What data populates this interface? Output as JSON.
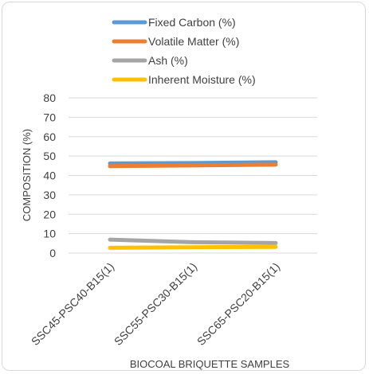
{
  "chart_data": {
    "type": "line",
    "title": "",
    "xlabel": "BIOCOAL BRIQUETTE SAMPLES",
    "ylabel": "COMPOSITION (%)",
    "ylim": [
      0,
      80
    ],
    "yticks": [
      0,
      10,
      20,
      30,
      40,
      50,
      60,
      70,
      80
    ],
    "grid": true,
    "legend_position": "top",
    "categories": [
      "SSC45-PSC40-B15(1)",
      "SSC55-PSC30-B15(1)",
      "SSC65-PSC20-B15(1)"
    ],
    "series": [
      {
        "name": "Fixed Carbon (%)",
        "values": [
          46.2,
          46.4,
          46.8
        ],
        "color": "#5b9bd5"
      },
      {
        "name": "Volatile Matter (%)",
        "values": [
          44.8,
          45.2,
          45.6
        ],
        "color": "#ed7d31"
      },
      {
        "name": "Ash (%)",
        "values": [
          6.9,
          5.6,
          5.2
        ],
        "color": "#a5a5a5"
      },
      {
        "name": "Inherent Moisture (%)",
        "values": [
          2.7,
          3.0,
          3.2
        ],
        "color": "#ffc000"
      }
    ]
  }
}
